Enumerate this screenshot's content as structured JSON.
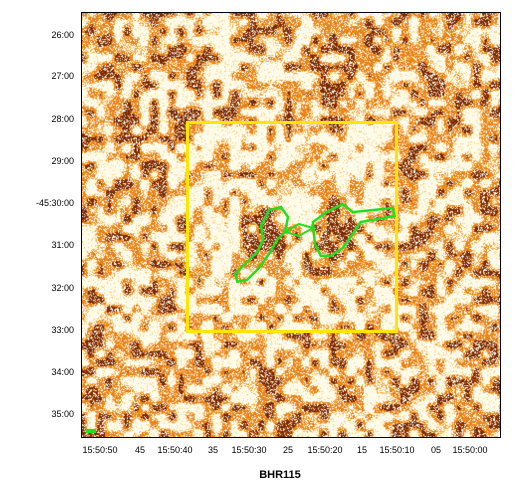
{
  "image": {
    "title": "BHR115",
    "y_ticks": [
      "26:00",
      "27:00",
      "28:00",
      "29:00",
      "-45:30:00",
      "31:00",
      "32:00",
      "33:00",
      "34:00",
      "35:00"
    ],
    "x_ticks": [
      "15:50:50",
      "45",
      "15:50:40",
      "35",
      "15:50:30",
      "25",
      "15:50:20",
      "15",
      "15:50:10",
      "05",
      "15:50:00"
    ],
    "colors": {
      "background_light": "#fffbe6",
      "emission_orange": "#e07b20",
      "emission_dark": "#7a2a05",
      "box": "#ffe600",
      "contour": "#22dd22"
    }
  }
}
